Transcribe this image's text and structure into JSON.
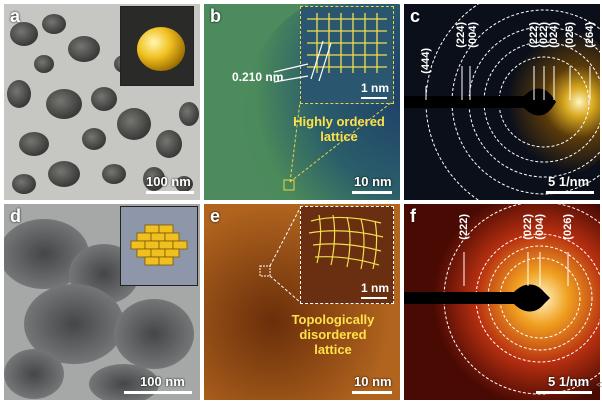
{
  "panels": {
    "a": {
      "letter": "a",
      "scale": "100 nm"
    },
    "b": {
      "letter": "b",
      "scale": "10 nm",
      "inset_scale": "1 nm",
      "spacing": "0.210 nm",
      "caption_line1": "Highly ordered",
      "caption_line2": "lattice"
    },
    "c": {
      "letter": "c",
      "scale": "5 1/nm",
      "indices": [
        "(444)",
        "(224)",
        "(004)",
        "(222)",
        "(022)",
        "(024)",
        "(026)",
        "(264)"
      ]
    },
    "d": {
      "letter": "d",
      "scale": "100 nm"
    },
    "e": {
      "letter": "e",
      "scale": "10 nm",
      "inset_scale": "1 nm",
      "caption_line1": "Topologically",
      "caption_line2": "disordered",
      "caption_line3": "lattice"
    },
    "f": {
      "letter": "f",
      "scale": "5 1/nm",
      "indices": [
        "(222)",
        "(022)",
        "(004)",
        "(026)"
      ]
    }
  },
  "side_mark": "<"
}
